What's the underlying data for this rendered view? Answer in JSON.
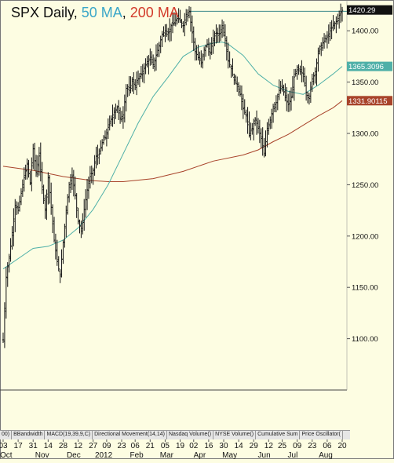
{
  "title": {
    "main": "SPX Daily,",
    "ma50": "50 MA",
    "separator": ",",
    "ma200": "200 MA"
  },
  "colors": {
    "background": "#fdfde2",
    "price": "#111111",
    "ma50": "#4fb0a8",
    "ma200": "#a8432a",
    "resistance": "#3a8a8a",
    "label_text": "#ffffff",
    "label_price": "#111111"
  },
  "indicator_tabs": [
    "00)",
    "BBandwidth",
    "MACD(19,39,9,C)",
    "Directional Movement(14,14)",
    "Nasdaq Volume()",
    "NYSE Volume()",
    "Cumulative Sum",
    "Price Oscillator("
  ],
  "chart_data": {
    "type": "candlestick",
    "title": "SPX Daily, 50 MA, 200 MA",
    "ylim": [
      1050,
      1430
    ],
    "y_ticks": [
      1100,
      1150,
      1200,
      1250,
      1300,
      1350,
      1400
    ],
    "y_tick_labels": [
      "1100.00",
      "1150.00",
      "1200.00",
      "1250.00",
      "1300.00",
      "1350.00",
      "1400.00"
    ],
    "x_ticks": [
      {
        "label": "03",
        "t": 0
      },
      {
        "label": "17",
        "t": 10
      },
      {
        "label": "31",
        "t": 20
      },
      {
        "label": "14",
        "t": 30
      },
      {
        "label": "28",
        "t": 40
      },
      {
        "label": "12",
        "t": 50
      },
      {
        "label": "27",
        "t": 60
      },
      {
        "label": "09",
        "t": 69
      },
      {
        "label": "23",
        "t": 79
      },
      {
        "label": "06",
        "t": 88
      },
      {
        "label": "21",
        "t": 98
      },
      {
        "label": "05",
        "t": 108
      },
      {
        "label": "19",
        "t": 118
      },
      {
        "label": "02",
        "t": 127
      },
      {
        "label": "16",
        "t": 137
      },
      {
        "label": "30",
        "t": 147
      },
      {
        "label": "14",
        "t": 157
      },
      {
        "label": "29",
        "t": 167
      },
      {
        "label": "12",
        "t": 177
      },
      {
        "label": "25",
        "t": 186
      },
      {
        "label": "09",
        "t": 196
      },
      {
        "label": "23",
        "t": 206
      },
      {
        "label": "06",
        "t": 216
      },
      {
        "label": "20",
        "t": 226
      }
    ],
    "month_labels": [
      {
        "label": "Oct",
        "t": 2
      },
      {
        "label": "Nov",
        "t": 26
      },
      {
        "label": "Dec",
        "t": 47
      },
      {
        "label": "2012",
        "t": 67
      },
      {
        "label": "Feb",
        "t": 89
      },
      {
        "label": "Mar",
        "t": 109
      },
      {
        "label": "Apr",
        "t": 131
      },
      {
        "label": "May",
        "t": 151
      },
      {
        "label": "Jun",
        "t": 174
      },
      {
        "label": "Jul",
        "t": 193
      },
      {
        "label": "Aug",
        "t": 215
      }
    ],
    "t_range": [
      0,
      226
    ],
    "price_points": [
      [
        0,
        1099
      ],
      [
        2,
        1160
      ],
      [
        5,
        1190
      ],
      [
        8,
        1230
      ],
      [
        10,
        1225
      ],
      [
        13,
        1250
      ],
      [
        16,
        1270
      ],
      [
        18,
        1252
      ],
      [
        20,
        1285
      ],
      [
        22,
        1262
      ],
      [
        24,
        1278
      ],
      [
        26,
        1248
      ],
      [
        28,
        1225
      ],
      [
        30,
        1257
      ],
      [
        32,
        1228
      ],
      [
        34,
        1196
      ],
      [
        36,
        1175
      ],
      [
        38,
        1161
      ],
      [
        40,
        1194
      ],
      [
        42,
        1225
      ],
      [
        44,
        1250
      ],
      [
        46,
        1258
      ],
      [
        48,
        1240
      ],
      [
        50,
        1215
      ],
      [
        52,
        1205
      ],
      [
        54,
        1226
      ],
      [
        56,
        1245
      ],
      [
        58,
        1258
      ],
      [
        60,
        1264
      ],
      [
        62,
        1278
      ],
      [
        64,
        1280
      ],
      [
        66,
        1291
      ],
      [
        68,
        1296
      ],
      [
        70,
        1306
      ],
      [
        72,
        1314
      ],
      [
        74,
        1322
      ],
      [
        76,
        1325
      ],
      [
        78,
        1315
      ],
      [
        80,
        1318
      ],
      [
        82,
        1344
      ],
      [
        84,
        1342
      ],
      [
        86,
        1351
      ],
      [
        88,
        1347
      ],
      [
        90,
        1353
      ],
      [
        92,
        1358
      ],
      [
        94,
        1363
      ],
      [
        96,
        1370
      ],
      [
        98,
        1372
      ],
      [
        100,
        1367
      ],
      [
        102,
        1376
      ],
      [
        104,
        1386
      ],
      [
        106,
        1396
      ],
      [
        108,
        1400
      ],
      [
        110,
        1398
      ],
      [
        112,
        1405
      ],
      [
        114,
        1408
      ],
      [
        116,
        1412
      ],
      [
        118,
        1410
      ],
      [
        120,
        1405
      ],
      [
        122,
        1416
      ],
      [
        124,
        1419
      ],
      [
        126,
        1398
      ],
      [
        128,
        1380
      ],
      [
        130,
        1374
      ],
      [
        132,
        1368
      ],
      [
        134,
        1382
      ],
      [
        136,
        1387
      ],
      [
        138,
        1378
      ],
      [
        140,
        1392
      ],
      [
        142,
        1398
      ],
      [
        144,
        1397
      ],
      [
        146,
        1405
      ],
      [
        148,
        1392
      ],
      [
        150,
        1371
      ],
      [
        152,
        1363
      ],
      [
        154,
        1352
      ],
      [
        156,
        1348
      ],
      [
        158,
        1338
      ],
      [
        160,
        1324
      ],
      [
        162,
        1317
      ],
      [
        164,
        1300
      ],
      [
        166,
        1305
      ],
      [
        168,
        1314
      ],
      [
        170,
        1305
      ],
      [
        172,
        1295
      ],
      [
        174,
        1279
      ],
      [
        176,
        1305
      ],
      [
        178,
        1313
      ],
      [
        180,
        1326
      ],
      [
        182,
        1330
      ],
      [
        184,
        1342
      ],
      [
        186,
        1345
      ],
      [
        188,
        1335
      ],
      [
        190,
        1328
      ],
      [
        192,
        1335
      ],
      [
        194,
        1355
      ],
      [
        196,
        1362
      ],
      [
        198,
        1360
      ],
      [
        200,
        1358
      ],
      [
        202,
        1340
      ],
      [
        204,
        1334
      ],
      [
        206,
        1353
      ],
      [
        208,
        1360
      ],
      [
        210,
        1378
      ],
      [
        212,
        1386
      ],
      [
        214,
        1390
      ],
      [
        216,
        1394
      ],
      [
        218,
        1400
      ],
      [
        220,
        1405
      ],
      [
        222,
        1409
      ],
      [
        224,
        1415
      ],
      [
        226,
        1420
      ]
    ],
    "ma50_points": [
      [
        0,
        1168
      ],
      [
        10,
        1178
      ],
      [
        20,
        1188
      ],
      [
        30,
        1190
      ],
      [
        40,
        1196
      ],
      [
        50,
        1208
      ],
      [
        60,
        1226
      ],
      [
        70,
        1250
      ],
      [
        80,
        1280
      ],
      [
        90,
        1310
      ],
      [
        100,
        1336
      ],
      [
        110,
        1355
      ],
      [
        120,
        1375
      ],
      [
        130,
        1384
      ],
      [
        140,
        1388
      ],
      [
        146,
        1389
      ],
      [
        150,
        1387
      ],
      [
        160,
        1376
      ],
      [
        170,
        1358
      ],
      [
        180,
        1347
      ],
      [
        190,
        1341
      ],
      [
        200,
        1338
      ],
      [
        210,
        1347
      ],
      [
        220,
        1358
      ],
      [
        226,
        1365.31
      ]
    ],
    "ma200_points": [
      [
        0,
        1268
      ],
      [
        20,
        1264
      ],
      [
        40,
        1258
      ],
      [
        60,
        1254
      ],
      [
        70,
        1253
      ],
      [
        80,
        1253
      ],
      [
        100,
        1256
      ],
      [
        120,
        1263
      ],
      [
        140,
        1273
      ],
      [
        160,
        1279
      ],
      [
        170,
        1284
      ],
      [
        180,
        1292
      ],
      [
        190,
        1299
      ],
      [
        200,
        1308
      ],
      [
        210,
        1317
      ],
      [
        220,
        1325
      ],
      [
        226,
        1331.9
      ]
    ],
    "resistance_line": {
      "t_start": 124,
      "t_end": 226,
      "value": 1419
    },
    "price_labels": [
      {
        "value": 1420.29,
        "text": "1420.29",
        "style": "price"
      },
      {
        "value": 1365.3096,
        "text": "1365.3096",
        "style": "ma50"
      },
      {
        "value": 1331.90115,
        "text": "1331.90115",
        "style": "ma200"
      }
    ]
  }
}
